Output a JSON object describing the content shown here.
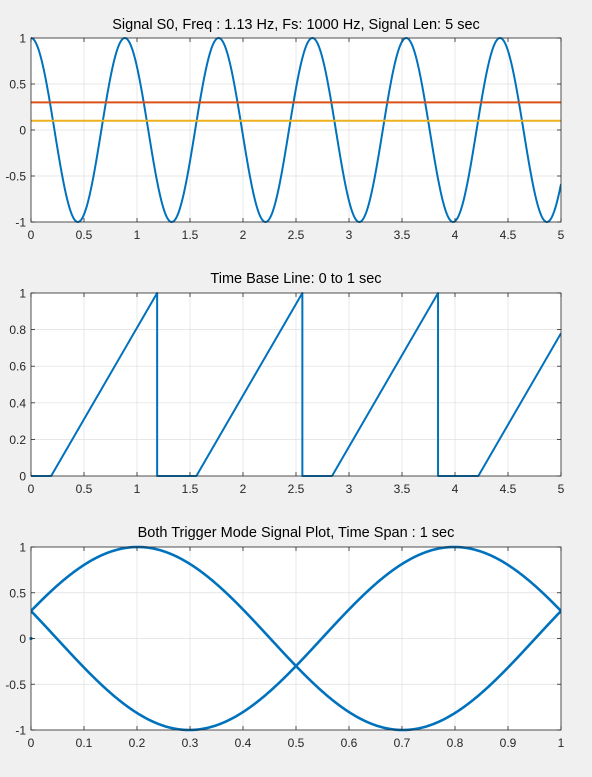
{
  "colors": {
    "primary": "#0072bd",
    "orange": "#d95319",
    "yellow": "#edb120",
    "grid": "#dfdfdf",
    "axis": "#262626"
  },
  "chart_data": [
    {
      "type": "line",
      "title": "Signal S0, Freq : 1.13 Hz, Fs: 1000 Hz, Signal Len: 5 sec",
      "xlabel": "",
      "ylabel": "",
      "xlim": [
        0,
        5
      ],
      "ylim": [
        -1,
        1
      ],
      "xticks": [
        0,
        0.5,
        1,
        1.5,
        2,
        2.5,
        3,
        3.5,
        4,
        4.5,
        5
      ],
      "xtick_labels": [
        "0",
        "0.5",
        "1",
        "1.5",
        "2",
        "2.5",
        "3",
        "3.5",
        "4",
        "4.5",
        "5"
      ],
      "yticks": [
        -1,
        -0.5,
        0,
        0.5,
        1
      ],
      "ytick_labels": [
        "-1",
        "-0.5",
        "0",
        "0.5",
        "1"
      ],
      "grid": true,
      "series": [
        {
          "kind": "cosine",
          "frequency_hz": 1.13,
          "amplitude": 1,
          "x_start": 0,
          "x_end": 5,
          "color": "#0072bd"
        },
        {
          "kind": "constant",
          "value": 0.3,
          "x_start": 0,
          "x_end": 5,
          "color": "#d95319"
        },
        {
          "kind": "constant",
          "value": 0.1,
          "x_start": 0,
          "x_end": 5,
          "color": "#edb120"
        }
      ]
    },
    {
      "type": "line",
      "title": "Time Base Line: 0 to 1 sec",
      "xlabel": "",
      "ylabel": "",
      "xlim": [
        0,
        5
      ],
      "ylim": [
        0,
        1
      ],
      "xticks": [
        0,
        0.5,
        1,
        1.5,
        2,
        2.5,
        3,
        3.5,
        4,
        4.5,
        5
      ],
      "xtick_labels": [
        "0",
        "0.5",
        "1",
        "1.5",
        "2",
        "2.5",
        "3",
        "3.5",
        "4",
        "4.5",
        "5"
      ],
      "yticks": [
        0,
        0.2,
        0.4,
        0.6,
        0.8,
        1
      ],
      "ytick_labels": [
        "0",
        "0.2",
        "0.4",
        "0.6",
        "0.8",
        "1"
      ],
      "grid": true,
      "series": [
        {
          "kind": "polyline",
          "color": "#0072bd",
          "x": [
            0,
            0.19,
            1.19,
            1.19,
            1.56,
            2.56,
            2.56,
            2.84,
            3.84,
            3.84,
            4.22,
            5
          ],
          "y": [
            0,
            0,
            1,
            0,
            0,
            1,
            0,
            0,
            1,
            0,
            0,
            0.78
          ]
        }
      ]
    },
    {
      "type": "line",
      "title": "Both Trigger Mode Signal Plot, Time Span : 1 sec",
      "xlabel": "",
      "ylabel": "",
      "xlim": [
        0,
        1
      ],
      "ylim": [
        -1,
        1
      ],
      "xticks": [
        0,
        0.1,
        0.2,
        0.3,
        0.4,
        0.5,
        0.6,
        0.7,
        0.8,
        0.9,
        1
      ],
      "xtick_labels": [
        "0",
        "0.1",
        "0.2",
        "0.3",
        "0.4",
        "0.5",
        "0.6",
        "0.7",
        "0.8",
        "0.9",
        "1"
      ],
      "yticks": [
        -1,
        -0.5,
        0,
        0.5,
        1
      ],
      "ytick_labels": [
        "-1",
        "-0.5",
        "0",
        "0.5",
        "1"
      ],
      "grid": true,
      "series": [
        {
          "kind": "sine",
          "frequency_hz": 1.0,
          "amplitude": 1,
          "phase_deg": 17.5,
          "x_start": 0,
          "x_end": 1,
          "color": "#0072bd",
          "thick": true
        },
        {
          "kind": "sine",
          "frequency_hz": 1.0,
          "amplitude": 1,
          "phase_deg": 162.5,
          "x_start": 0,
          "x_end": 1,
          "color": "#0072bd",
          "thick": true
        }
      ],
      "markers": [
        {
          "x": 0,
          "y": 0
        }
      ]
    }
  ]
}
